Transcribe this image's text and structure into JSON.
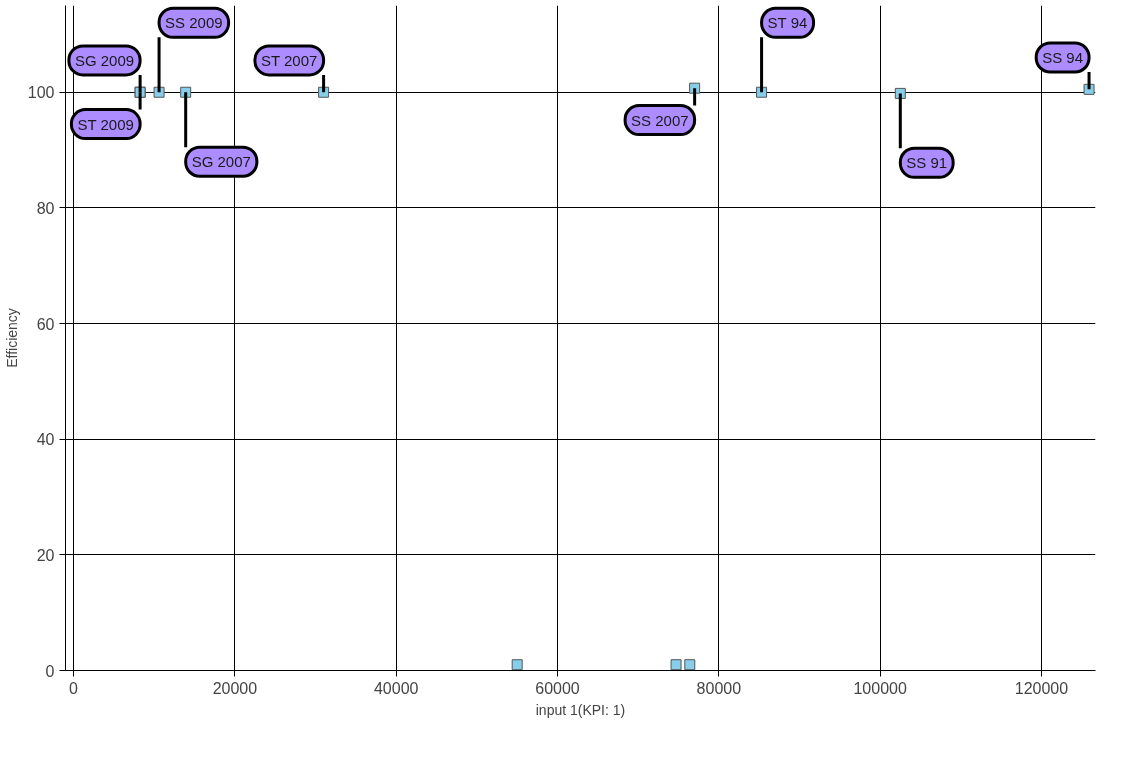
{
  "chart_data": {
    "type": "scatter",
    "xlabel": "input 1(KPI: 1)",
    "ylabel": "Efficiency",
    "x": [
      8250,
      8250,
      10600,
      13900,
      31000,
      55000,
      74700,
      76400,
      77000,
      85300,
      102500,
      125900
    ],
    "values": [
      100,
      100,
      100,
      100,
      100,
      1,
      1,
      1,
      100.7,
      100,
      99.8,
      100.5
    ],
    "color": "#87ceeb",
    "marker": "square",
    "grid": true,
    "xlim": [
      -1000,
      126700
    ],
    "ylim": [
      0,
      115
    ],
    "xticks": [
      0,
      20000,
      40000,
      60000,
      80000,
      100000,
      120000
    ],
    "yticks": [
      0,
      20,
      40,
      60,
      80,
      100
    ],
    "annotations": [
      {
        "text": "SG 2009",
        "x": 8250,
        "y": 100
      },
      {
        "text": "ST 2009",
        "x": 8250,
        "y": 100
      },
      {
        "text": "SS 2009",
        "x": 10600,
        "y": 100
      },
      {
        "text": "SG 2007",
        "x": 13900,
        "y": 100
      },
      {
        "text": "ST 2007",
        "x": 31000,
        "y": 100
      },
      {
        "text": "SS 2007",
        "x": 77000,
        "y": 100.7
      },
      {
        "text": "ST 94",
        "x": 85300,
        "y": 100
      },
      {
        "text": "SS 91",
        "x": 102500,
        "y": 99.8
      },
      {
        "text": "SS 94",
        "x": 125900,
        "y": 100.5
      }
    ]
  }
}
